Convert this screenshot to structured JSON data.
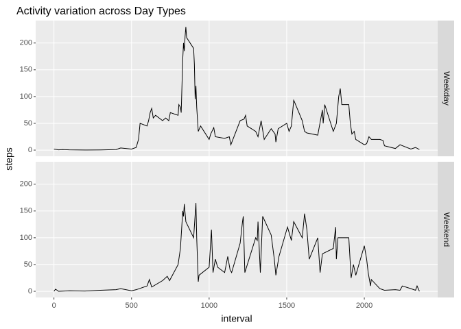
{
  "chart_data": {
    "type": "facet_line",
    "title": "Activity variation across Day Types",
    "x_label": "interval",
    "y_label": "steps",
    "xlim": [
      -117.75,
      2472.75
    ],
    "xticks": [
      0,
      500,
      1000,
      1500,
      2000
    ],
    "ylim": [
      -11.5,
      241.9
    ],
    "yticks": [
      0,
      50,
      100,
      150,
      200
    ],
    "color": "#000000",
    "grid": true,
    "panels": [
      {
        "name": "Weekday",
        "x": [
          0,
          30,
          55,
          100,
          200,
          300,
          400,
          430,
          500,
          530,
          545,
          555,
          600,
          610,
          620,
          630,
          640,
          655,
          700,
          720,
          740,
          750,
          800,
          805,
          815,
          820,
          830,
          835,
          840,
          845,
          850,
          855,
          900,
          905,
          910,
          915,
          920,
          930,
          945,
          1000,
          1010,
          1030,
          1040,
          1100,
          1130,
          1140,
          1200,
          1225,
          1235,
          1245,
          1300,
          1315,
          1335,
          1355,
          1400,
          1425,
          1430,
          1445,
          1500,
          1515,
          1530,
          1545,
          1550,
          1600,
          1615,
          1630,
          1700,
          1730,
          1735,
          1745,
          1800,
          1820,
          1835,
          1845,
          1855,
          1900,
          1910,
          1920,
          1935,
          1945,
          2000,
          2015,
          2030,
          2045,
          2100,
          2120,
          2130,
          2200,
          2230,
          2300,
          2330,
          2355
        ],
        "values": [
          2,
          0.5,
          1,
          0.5,
          0.2,
          0.3,
          1,
          4,
          2,
          5,
          20,
          50,
          45,
          55,
          70,
          78,
          60,
          65,
          55,
          60,
          55,
          70,
          65,
          85,
          80,
          70,
          170,
          200,
          185,
          212,
          230,
          210,
          190,
          160,
          95,
          120,
          80,
          35,
          45,
          20,
          30,
          42,
          25,
          22,
          25,
          10,
          55,
          58,
          65,
          45,
          35,
          25,
          55,
          20,
          40,
          30,
          15,
          40,
          50,
          35,
          45,
          93,
          90,
          55,
          35,
          32,
          28,
          75,
          50,
          85,
          35,
          50,
          100,
          115,
          85,
          85,
          50,
          30,
          35,
          20,
          10,
          12,
          25,
          20,
          20,
          18,
          8,
          3,
          10,
          2,
          5,
          1
        ]
      },
      {
        "name": "Weekend",
        "x": [
          0,
          10,
          30,
          100,
          200,
          300,
          400,
          430,
          500,
          530,
          600,
          615,
          630,
          700,
          730,
          745,
          800,
          815,
          830,
          835,
          840,
          850,
          900,
          915,
          920,
          930,
          935,
          1000,
          1015,
          1025,
          1040,
          1055,
          1100,
          1120,
          1135,
          1145,
          1200,
          1215,
          1220,
          1230,
          1300,
          1310,
          1315,
          1330,
          1345,
          1400,
          1420,
          1430,
          1450,
          1505,
          1515,
          1530,
          1545,
          1600,
          1615,
          1630,
          1645,
          1700,
          1715,
          1730,
          1800,
          1815,
          1820,
          1830,
          1900,
          1915,
          1930,
          1945,
          2000,
          2015,
          2025,
          2040,
          2045,
          2100,
          2130,
          2200,
          2230,
          2245,
          2300,
          2330,
          2340,
          2355
        ],
        "values": [
          0,
          4,
          0,
          1,
          0.5,
          2,
          3,
          5,
          1,
          3,
          10,
          22,
          8,
          20,
          28,
          20,
          50,
          80,
          150,
          140,
          163,
          130,
          100,
          165,
          100,
          18,
          30,
          45,
          115,
          35,
          60,
          45,
          35,
          65,
          40,
          35,
          90,
          130,
          140,
          35,
          100,
          95,
          130,
          35,
          140,
          105,
          60,
          30,
          65,
          120,
          110,
          95,
          130,
          100,
          145,
          115,
          60,
          100,
          35,
          70,
          80,
          120,
          60,
          100,
          100,
          25,
          50,
          30,
          85,
          60,
          35,
          10,
          22,
          5,
          2,
          3,
          2,
          10,
          5,
          2,
          10,
          0
        ]
      }
    ]
  }
}
